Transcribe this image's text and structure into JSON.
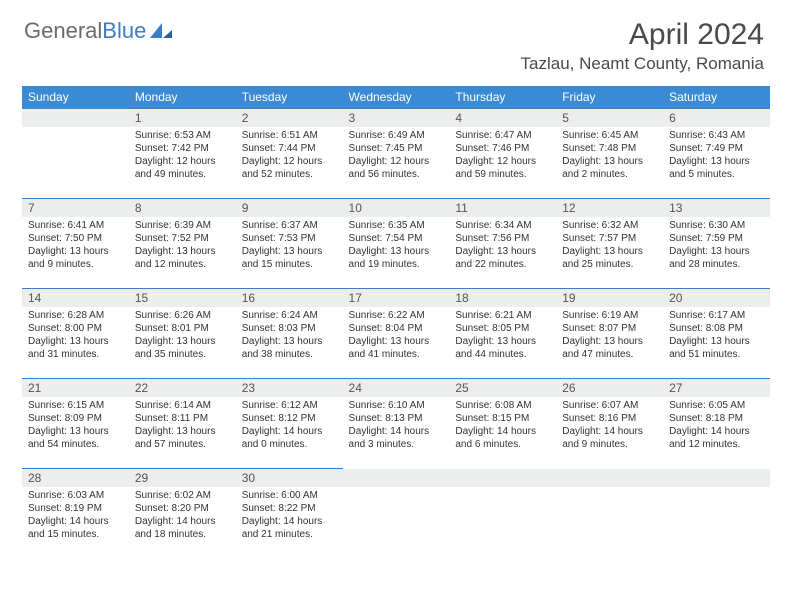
{
  "brand": {
    "part1": "General",
    "part2": "Blue"
  },
  "title": "April 2024",
  "location": "Tazlau, Neamt County, Romania",
  "colors": {
    "header_bg": "#3b8bd4",
    "border": "#3b7ec4",
    "daybar": "#eceded",
    "logo_gray": "#6b6b6b",
    "logo_blue": "#3b7ec4"
  },
  "weekdays": [
    "Sunday",
    "Monday",
    "Tuesday",
    "Wednesday",
    "Thursday",
    "Friday",
    "Saturday"
  ],
  "weeks": [
    [
      null,
      {
        "n": "1",
        "sr": "Sunrise: 6:53 AM",
        "ss": "Sunset: 7:42 PM",
        "d1": "Daylight: 12 hours",
        "d2": "and 49 minutes."
      },
      {
        "n": "2",
        "sr": "Sunrise: 6:51 AM",
        "ss": "Sunset: 7:44 PM",
        "d1": "Daylight: 12 hours",
        "d2": "and 52 minutes."
      },
      {
        "n": "3",
        "sr": "Sunrise: 6:49 AM",
        "ss": "Sunset: 7:45 PM",
        "d1": "Daylight: 12 hours",
        "d2": "and 56 minutes."
      },
      {
        "n": "4",
        "sr": "Sunrise: 6:47 AM",
        "ss": "Sunset: 7:46 PM",
        "d1": "Daylight: 12 hours",
        "d2": "and 59 minutes."
      },
      {
        "n": "5",
        "sr": "Sunrise: 6:45 AM",
        "ss": "Sunset: 7:48 PM",
        "d1": "Daylight: 13 hours",
        "d2": "and 2 minutes."
      },
      {
        "n": "6",
        "sr": "Sunrise: 6:43 AM",
        "ss": "Sunset: 7:49 PM",
        "d1": "Daylight: 13 hours",
        "d2": "and 5 minutes."
      }
    ],
    [
      {
        "n": "7",
        "sr": "Sunrise: 6:41 AM",
        "ss": "Sunset: 7:50 PM",
        "d1": "Daylight: 13 hours",
        "d2": "and 9 minutes."
      },
      {
        "n": "8",
        "sr": "Sunrise: 6:39 AM",
        "ss": "Sunset: 7:52 PM",
        "d1": "Daylight: 13 hours",
        "d2": "and 12 minutes."
      },
      {
        "n": "9",
        "sr": "Sunrise: 6:37 AM",
        "ss": "Sunset: 7:53 PM",
        "d1": "Daylight: 13 hours",
        "d2": "and 15 minutes."
      },
      {
        "n": "10",
        "sr": "Sunrise: 6:35 AM",
        "ss": "Sunset: 7:54 PM",
        "d1": "Daylight: 13 hours",
        "d2": "and 19 minutes."
      },
      {
        "n": "11",
        "sr": "Sunrise: 6:34 AM",
        "ss": "Sunset: 7:56 PM",
        "d1": "Daylight: 13 hours",
        "d2": "and 22 minutes."
      },
      {
        "n": "12",
        "sr": "Sunrise: 6:32 AM",
        "ss": "Sunset: 7:57 PM",
        "d1": "Daylight: 13 hours",
        "d2": "and 25 minutes."
      },
      {
        "n": "13",
        "sr": "Sunrise: 6:30 AM",
        "ss": "Sunset: 7:59 PM",
        "d1": "Daylight: 13 hours",
        "d2": "and 28 minutes."
      }
    ],
    [
      {
        "n": "14",
        "sr": "Sunrise: 6:28 AM",
        "ss": "Sunset: 8:00 PM",
        "d1": "Daylight: 13 hours",
        "d2": "and 31 minutes."
      },
      {
        "n": "15",
        "sr": "Sunrise: 6:26 AM",
        "ss": "Sunset: 8:01 PM",
        "d1": "Daylight: 13 hours",
        "d2": "and 35 minutes."
      },
      {
        "n": "16",
        "sr": "Sunrise: 6:24 AM",
        "ss": "Sunset: 8:03 PM",
        "d1": "Daylight: 13 hours",
        "d2": "and 38 minutes."
      },
      {
        "n": "17",
        "sr": "Sunrise: 6:22 AM",
        "ss": "Sunset: 8:04 PM",
        "d1": "Daylight: 13 hours",
        "d2": "and 41 minutes."
      },
      {
        "n": "18",
        "sr": "Sunrise: 6:21 AM",
        "ss": "Sunset: 8:05 PM",
        "d1": "Daylight: 13 hours",
        "d2": "and 44 minutes."
      },
      {
        "n": "19",
        "sr": "Sunrise: 6:19 AM",
        "ss": "Sunset: 8:07 PM",
        "d1": "Daylight: 13 hours",
        "d2": "and 47 minutes."
      },
      {
        "n": "20",
        "sr": "Sunrise: 6:17 AM",
        "ss": "Sunset: 8:08 PM",
        "d1": "Daylight: 13 hours",
        "d2": "and 51 minutes."
      }
    ],
    [
      {
        "n": "21",
        "sr": "Sunrise: 6:15 AM",
        "ss": "Sunset: 8:09 PM",
        "d1": "Daylight: 13 hours",
        "d2": "and 54 minutes."
      },
      {
        "n": "22",
        "sr": "Sunrise: 6:14 AM",
        "ss": "Sunset: 8:11 PM",
        "d1": "Daylight: 13 hours",
        "d2": "and 57 minutes."
      },
      {
        "n": "23",
        "sr": "Sunrise: 6:12 AM",
        "ss": "Sunset: 8:12 PM",
        "d1": "Daylight: 14 hours",
        "d2": "and 0 minutes."
      },
      {
        "n": "24",
        "sr": "Sunrise: 6:10 AM",
        "ss": "Sunset: 8:13 PM",
        "d1": "Daylight: 14 hours",
        "d2": "and 3 minutes."
      },
      {
        "n": "25",
        "sr": "Sunrise: 6:08 AM",
        "ss": "Sunset: 8:15 PM",
        "d1": "Daylight: 14 hours",
        "d2": "and 6 minutes."
      },
      {
        "n": "26",
        "sr": "Sunrise: 6:07 AM",
        "ss": "Sunset: 8:16 PM",
        "d1": "Daylight: 14 hours",
        "d2": "and 9 minutes."
      },
      {
        "n": "27",
        "sr": "Sunrise: 6:05 AM",
        "ss": "Sunset: 8:18 PM",
        "d1": "Daylight: 14 hours",
        "d2": "and 12 minutes."
      }
    ],
    [
      {
        "n": "28",
        "sr": "Sunrise: 6:03 AM",
        "ss": "Sunset: 8:19 PM",
        "d1": "Daylight: 14 hours",
        "d2": "and 15 minutes."
      },
      {
        "n": "29",
        "sr": "Sunrise: 6:02 AM",
        "ss": "Sunset: 8:20 PM",
        "d1": "Daylight: 14 hours",
        "d2": "and 18 minutes."
      },
      {
        "n": "30",
        "sr": "Sunrise: 6:00 AM",
        "ss": "Sunset: 8:22 PM",
        "d1": "Daylight: 14 hours",
        "d2": "and 21 minutes."
      },
      null,
      null,
      null,
      null
    ]
  ]
}
